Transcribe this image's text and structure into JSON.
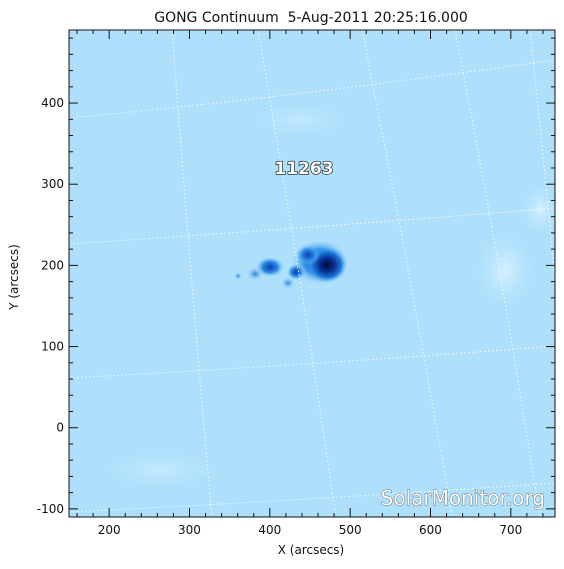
{
  "figure": {
    "title": "GONG Continuum  5-Aug-2011 20:25:16.000",
    "xlabel": "X (arcsecs)",
    "ylabel": "Y (arcsecs)",
    "x_ticks": [
      200,
      300,
      400,
      500,
      600,
      700
    ],
    "y_ticks": [
      -100,
      0,
      100,
      200,
      300,
      400
    ],
    "x_range": [
      150,
      755
    ],
    "y_range": [
      -110,
      490
    ],
    "active_region": {
      "label": "11263",
      "x": 445,
      "y": 320
    },
    "watermark": "SolarMonitor.org",
    "colors": {
      "background_blue": "#aee0fb",
      "sunspot_dark": "#0a1e66",
      "penumbra": "#1e88e0",
      "grid": "#ffffff"
    }
  }
}
